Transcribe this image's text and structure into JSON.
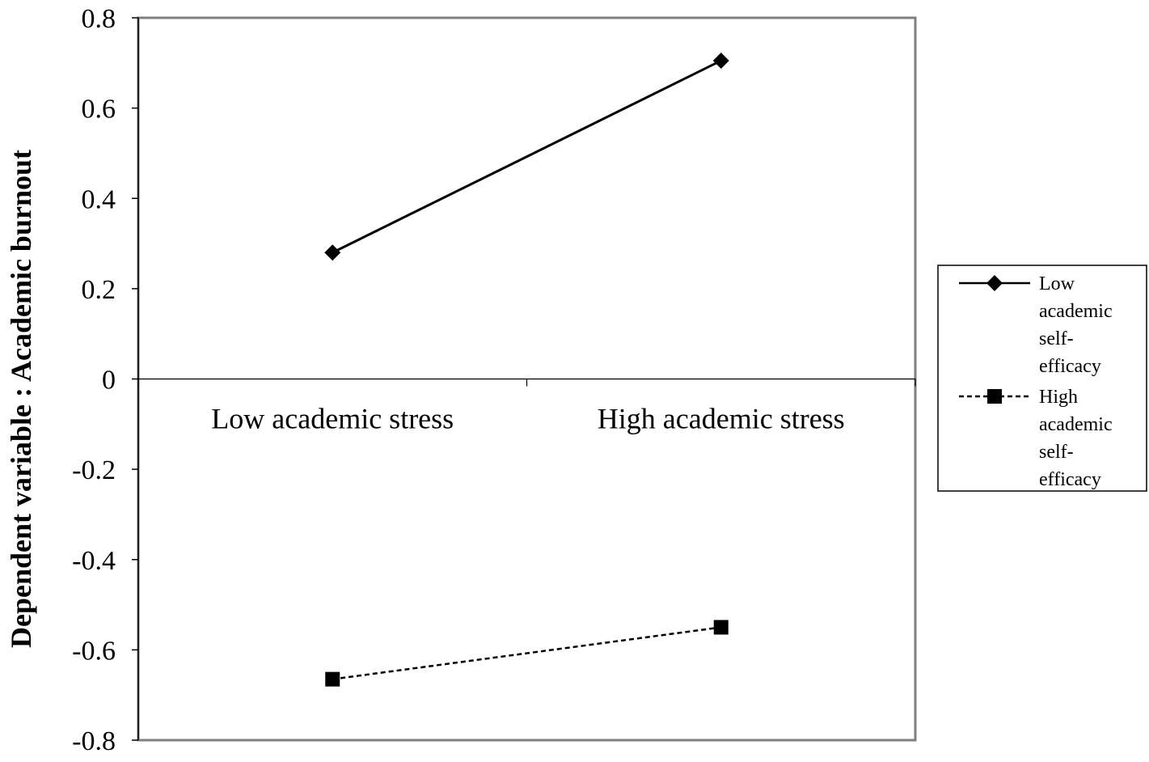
{
  "chart_data": {
    "type": "line",
    "categories": [
      "Low academic stress",
      "High academic  stress"
    ],
    "ylabel": "Dependent variable : Academic burnout",
    "xlabel": "",
    "title": "",
    "ylim": [
      -0.8,
      0.8
    ],
    "yticks": [
      "0.8",
      "0.6",
      "0.4",
      "0.2",
      "0",
      "-0.2",
      "-0.4",
      "-0.6",
      "-0.8"
    ],
    "grid": false,
    "legend_position": "right",
    "series": [
      {
        "name_lines": [
          "Low",
          "academic",
          "self-",
          "efficacy"
        ],
        "values": [
          0.28,
          0.705
        ],
        "marker": "diamond",
        "line_style": "solid",
        "color": "#000000"
      },
      {
        "name_lines": [
          "High",
          "academic",
          "self-",
          "efficacy"
        ],
        "values": [
          -0.665,
          -0.55
        ],
        "marker": "square",
        "line_style": "dashed",
        "color": "#000000"
      }
    ]
  }
}
